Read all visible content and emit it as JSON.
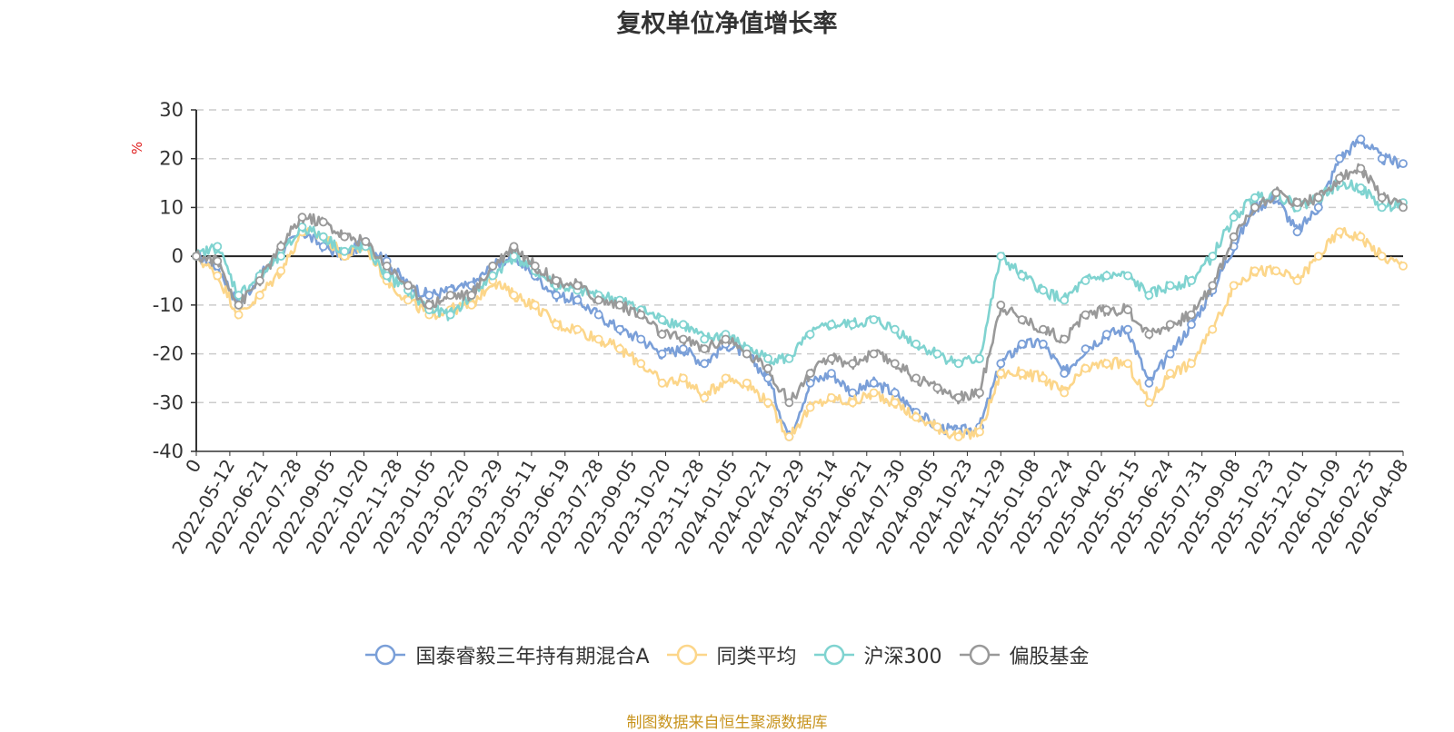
{
  "chart_data": {
    "type": "line",
    "title": "复权单位净值增长率",
    "ylabel": "%",
    "xlabel": "",
    "ylim": [
      -40,
      30
    ],
    "yticks": [
      30,
      20,
      10,
      0,
      -10,
      -20,
      -30,
      -40
    ],
    "grid": true,
    "legend_position": "bottom-center",
    "x_ticks": [
      "0",
      "2022-05-12",
      "2022-06-21",
      "2022-07-28",
      "2022-09-05",
      "2022-10-20",
      "2022-11-28",
      "2023-01-05",
      "2023-02-20",
      "2023-03-29",
      "2023-05-11",
      "2023-06-19",
      "2023-07-28",
      "2023-09-05",
      "2023-10-20",
      "2023-11-28",
      "2024-01-05",
      "2024-02-21",
      "2024-03-29",
      "2024-05-14",
      "2024-06-21",
      "2024-07-30",
      "2024-09-05",
      "2024-10-23",
      "2024-11-29",
      "2025-01-08",
      "2025-02-24",
      "2025-04-02",
      "2025-05-15",
      "2025-06-24",
      "2025-07-31",
      "2025-09-08",
      "2025-10-23",
      "2025-12-01",
      "2026-01-09",
      "2026-02-25",
      "2026-04-08"
    ],
    "series": [
      {
        "name": "国泰睿毅三年持有期混合A",
        "color": "#7a9fd8",
        "values": [
          0,
          -2,
          -10,
          -4,
          1,
          5,
          2,
          0,
          3,
          -1,
          -6,
          -8,
          -7,
          -6,
          -2,
          0,
          -4,
          -8,
          -9,
          -12,
          -15,
          -17,
          -20,
          -19,
          -22,
          -18,
          -20,
          -25,
          -37,
          -26,
          -24,
          -28,
          -26,
          -28,
          -32,
          -35,
          -36,
          -35,
          -22,
          -18,
          -18,
          -24,
          -19,
          -16,
          -15,
          -26,
          -20,
          -14,
          -7,
          2,
          10,
          12,
          5,
          10,
          20,
          24,
          20,
          19
        ]
      },
      {
        "name": "同类平均",
        "color": "#fcd68a",
        "values": [
          0,
          -4,
          -12,
          -8,
          -3,
          5,
          4,
          0,
          2,
          -5,
          -9,
          -12,
          -11,
          -10,
          -5,
          -8,
          -10,
          -14,
          -15,
          -17,
          -19,
          -22,
          -26,
          -25,
          -29,
          -25,
          -26,
          -30,
          -37,
          -31,
          -29,
          -30,
          -28,
          -30,
          -33,
          -35,
          -37,
          -36,
          -24,
          -24,
          -25,
          -28,
          -23,
          -22,
          -22,
          -30,
          -24,
          -22,
          -15,
          -6,
          -3,
          -3,
          -5,
          0,
          5,
          4,
          0,
          -2
        ]
      },
      {
        "name": "沪深300",
        "color": "#7fd3d0",
        "values": [
          0,
          2,
          -8,
          -4,
          0,
          6,
          4,
          1,
          2,
          -4,
          -7,
          -11,
          -12,
          -8,
          -4,
          0,
          -3,
          -6,
          -7,
          -8,
          -9,
          -11,
          -13,
          -14,
          -17,
          -16,
          -19,
          -21,
          -21,
          -16,
          -14,
          -14,
          -13,
          -15,
          -18,
          -20,
          -22,
          -21,
          0,
          -4,
          -7,
          -9,
          -5,
          -4,
          -4,
          -8,
          -6,
          -5,
          0,
          8,
          12,
          13,
          10,
          12,
          15,
          14,
          10,
          11
        ]
      },
      {
        "name": "偏股基金",
        "color": "#999999",
        "values": [
          0,
          -1,
          -10,
          -5,
          2,
          8,
          7,
          4,
          3,
          -2,
          -6,
          -10,
          -8,
          -8,
          -2,
          2,
          -2,
          -5,
          -6,
          -9,
          -10,
          -12,
          -16,
          -17,
          -19,
          -17,
          -20,
          -23,
          -30,
          -24,
          -21,
          -22,
          -20,
          -22,
          -25,
          -27,
          -29,
          -28,
          -10,
          -13,
          -15,
          -17,
          -12,
          -11,
          -11,
          -16,
          -14,
          -12,
          -6,
          4,
          10,
          13,
          11,
          12,
          16,
          18,
          12,
          10
        ]
      }
    ]
  },
  "source_note": "制图数据来自恒生聚源数据库"
}
